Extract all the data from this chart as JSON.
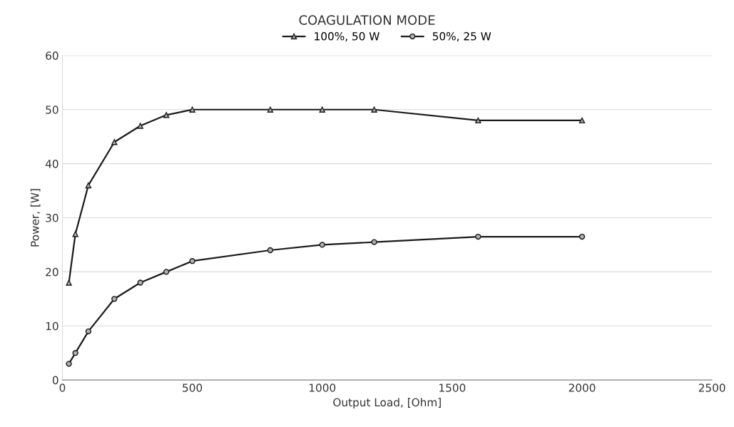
{
  "chart_data": {
    "type": "line",
    "title": "COAGULATION MODE",
    "xlabel": "Output Load, [Ohm]",
    "ylabel": "Power, [W]",
    "series": [
      {
        "name": "100%, 50 W",
        "color": "#1a1a1a",
        "marker": "triangle",
        "x": [
          25,
          50,
          100,
          200,
          300,
          400,
          500,
          800,
          1000,
          1200,
          1600,
          2000
        ],
        "values": [
          18,
          27,
          36,
          44,
          47,
          49,
          50,
          50,
          50,
          50,
          48,
          48
        ]
      },
      {
        "name": "50%, 25 W",
        "color": "#1a1a1a",
        "marker": "circle",
        "x": [
          25,
          50,
          100,
          200,
          300,
          400,
          500,
          800,
          1000,
          1200,
          1600,
          2000
        ],
        "values": [
          3,
          5,
          9,
          15,
          18,
          20,
          22,
          24,
          25,
          25.5,
          26.5,
          26.5
        ]
      }
    ],
    "xlim": [
      0,
      2500
    ],
    "xticks": [
      0,
      500,
      1000,
      1500,
      2000,
      2500
    ],
    "ylim": [
      0,
      60
    ],
    "yticks": [
      0,
      10,
      20,
      30,
      40,
      50,
      60
    ],
    "grid": "y",
    "legend": "top",
    "line_style": "solid"
  }
}
